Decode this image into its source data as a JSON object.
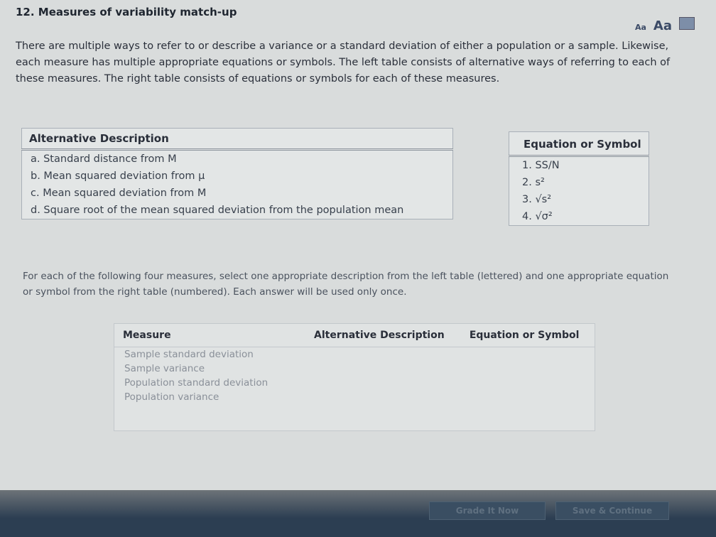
{
  "title": "12. Measures of variability match-up",
  "font_controls": {
    "small": "Aa",
    "large": "Aa",
    "print_icon": "print-icon"
  },
  "intro": "There are multiple ways to refer to or describe a variance or a standard deviation of either a population or a sample. Likewise, each measure has multiple appropriate equations or symbols. The left table consists of alternative ways of referring to each of these measures. The right table consists of equations or symbols for each of these measures.",
  "left_table": {
    "header": "Alternative Description",
    "rows": [
      "a. Standard distance from M",
      "b. Mean squared deviation from μ",
      "c. Mean squared deviation from M",
      "d. Square root of the mean squared deviation from the population mean"
    ]
  },
  "right_table": {
    "header": "Equation or Symbol",
    "rows": [
      "1. SS/N",
      "2. s²",
      "3. √s²",
      "4. √σ²"
    ]
  },
  "instructions": "For each of the following four measures, select one appropriate description from the left table (lettered) and one appropriate equation or symbol from the right table (numbered). Each answer will be used only once.",
  "match_table": {
    "headers": [
      "Measure",
      "Alternative Description",
      "Equation or Symbol"
    ],
    "rows": [
      "Sample standard deviation",
      "Sample variance",
      "Population standard deviation",
      "Population variance"
    ]
  },
  "buttons": {
    "grade": "Grade It Now",
    "save": "Save & Continue"
  }
}
